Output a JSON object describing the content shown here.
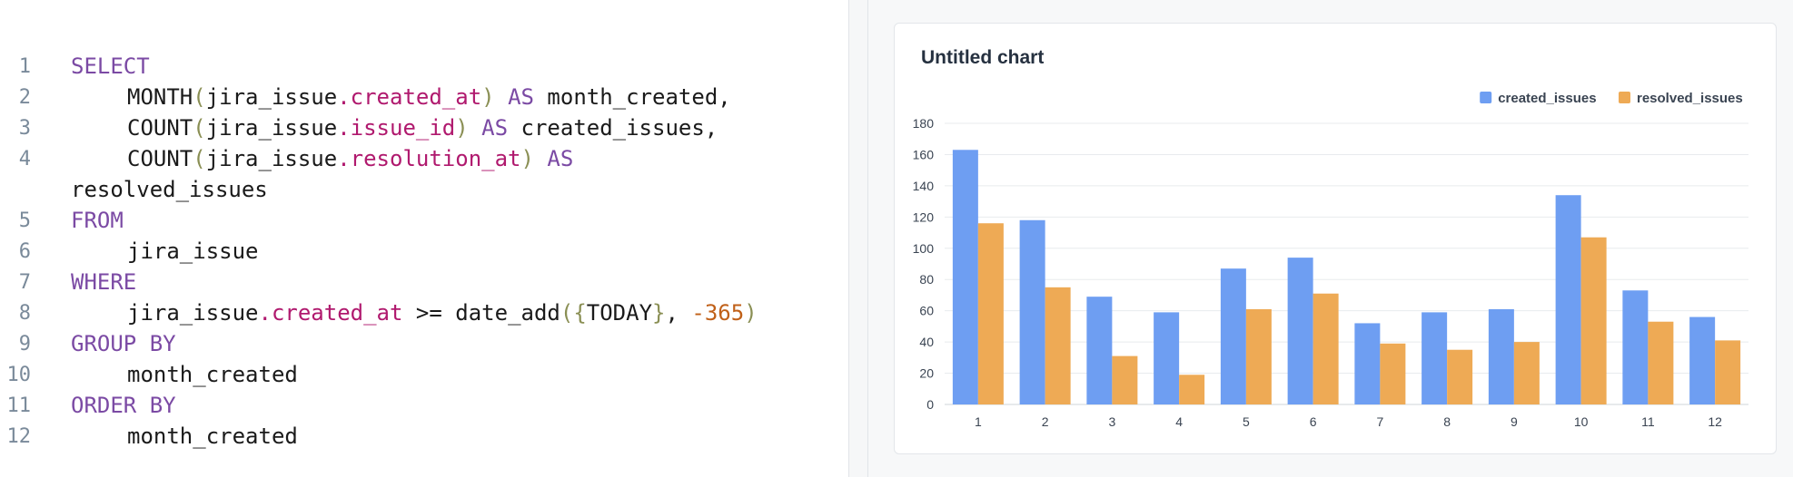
{
  "editor": {
    "lines": [
      {
        "n": "1"
      },
      {
        "n": "2"
      },
      {
        "n": "3"
      },
      {
        "n": "4"
      },
      {
        "n": ""
      },
      {
        "n": "5"
      },
      {
        "n": "6"
      },
      {
        "n": "7"
      },
      {
        "n": "8"
      },
      {
        "n": "9"
      },
      {
        "n": "10"
      },
      {
        "n": "11"
      },
      {
        "n": "12"
      }
    ],
    "tokens": {
      "select": "SELECT",
      "month": "MONTH",
      "table": "jira_issue",
      "created_at": ".created_at",
      "as": "AS",
      "month_created_alias": "month_created,",
      "count": "COUNT",
      "issue_id": ".issue_id",
      "created_issues_alias": "created_issues,",
      "resolution_at": ".resolution_at",
      "resolved_issues": "resolved_issues",
      "from": "FROM",
      "where": "WHERE",
      "gte": ">=",
      "date_add": "date_add",
      "today": "TODAY",
      "minus": "-",
      "days": "365",
      "group_by": "GROUP BY",
      "month_created": "month_created",
      "order_by": "ORDER BY",
      "open_paren": "(",
      "close_paren": ")",
      "open_brace": "{",
      "close_brace": "}",
      "comma": ","
    }
  },
  "chart_data": {
    "type": "bar",
    "title": "Untitled chart",
    "categories": [
      "1",
      "2",
      "3",
      "4",
      "5",
      "6",
      "7",
      "8",
      "9",
      "10",
      "11",
      "12"
    ],
    "series": [
      {
        "name": "created_issues",
        "color": "#6e9ef2",
        "values": [
          163,
          118,
          69,
          59,
          87,
          94,
          52,
          59,
          61,
          134,
          73,
          56
        ]
      },
      {
        "name": "resolved_issues",
        "color": "#eeaa55",
        "values": [
          116,
          75,
          31,
          19,
          61,
          71,
          39,
          35,
          40,
          107,
          53,
          41
        ]
      }
    ],
    "ylim": [
      0,
      180
    ],
    "yticks": [
      0,
      20,
      40,
      60,
      80,
      100,
      120,
      140,
      160,
      180
    ],
    "grid": true,
    "legend": "top-right"
  }
}
